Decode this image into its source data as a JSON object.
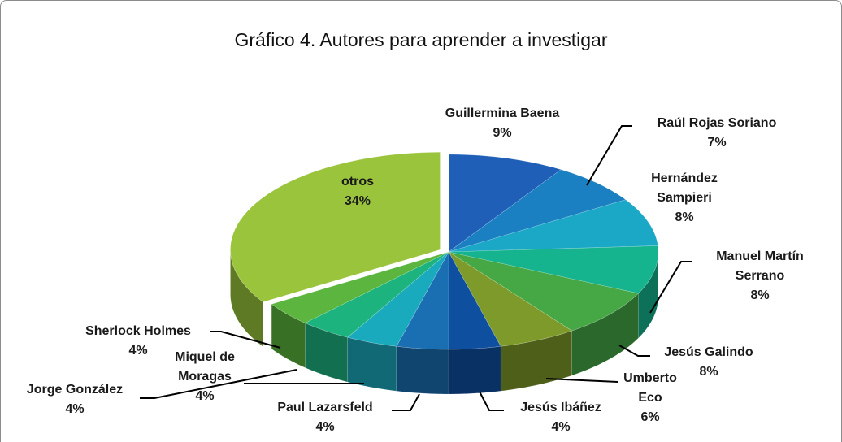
{
  "chart_data": {
    "type": "pie",
    "title": "Gráfico 4. Autores para aprender a investigar",
    "categories": [
      "Guillermina Baena",
      "Raúl Rojas Soriano",
      "Hernández Sampieri",
      "Manuel Martín Serrano",
      "Jesús Galindo",
      "Umberto Eco",
      "Jesús Ibáñez",
      "Paul Lazarsfeld",
      "Miquel de Moragas",
      "Jorge González",
      "Sherlock Holmes",
      "otros"
    ],
    "values": [
      9,
      7,
      8,
      8,
      8,
      6,
      4,
      4,
      4,
      4,
      4,
      34
    ],
    "value_labels": [
      "9%",
      "7%",
      "8%",
      "8%",
      "8%",
      "6%",
      "4%",
      "4%",
      "4%",
      "4%",
      "4%",
      "34%"
    ],
    "colors": [
      "#1f5fb8",
      "#1a80c2",
      "#1ba7c6",
      "#15b48f",
      "#45a845",
      "#7e9a2a",
      "#0f4f9f",
      "#1a6fb3",
      "#1aaabd",
      "#1db37f",
      "#5bb53e",
      "#9ac43c"
    ]
  }
}
